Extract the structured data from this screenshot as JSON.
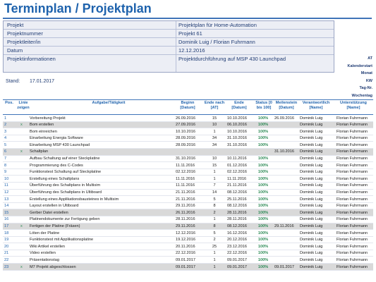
{
  "title": "Terminplan / Projektplan",
  "info": [
    {
      "label": "Projekt",
      "value": "Projektplan für Home-Automation"
    },
    {
      "label": "Projektnummer",
      "value": "Projekt 61"
    },
    {
      "label": "Projektleiter/in",
      "value": "Dominik Luig / Florian Fuhrmann"
    },
    {
      "label": "Datum",
      "value": "12.12.2016"
    },
    {
      "label": "Projektinformationen",
      "value": "Projektdurchführung auf MSP 430 Launchpad"
    }
  ],
  "right_labels": [
    "AT",
    "Kalenderstart",
    "Monat",
    "KW",
    "Tag-Nr.",
    "Wochentag"
  ],
  "stand": {
    "label": "Stand:",
    "value": "17.01.2017"
  },
  "headers": {
    "pos": "Pos.",
    "linie": "Linie zeigen",
    "task": "Aufgabe/Tätigkeit",
    "beginn": "Beginn [Datum]",
    "ende_nach": "Ende nach [AT]",
    "ende": "Ende [Datum]",
    "status": "Status [0 bis 100]",
    "meilenstein": "Meilenstein [Datum]",
    "verantwortlich": "Verantwortlich [Name]",
    "unterstuetzung": "Unterstützung [Name]"
  },
  "rows": [
    {
      "pos": "1",
      "linie": "",
      "task": "Vorbereitung Projekt",
      "beginn": "26.09.2016",
      "at": "15",
      "ende": "10.10.2016",
      "status": "100%",
      "meilenstein": "26.09.2016",
      "verantwortlich": "Dominik Luig",
      "unterstuetzung": "Florian Fuhrmann",
      "ms": false
    },
    {
      "pos": "2",
      "linie": "x",
      "task": "Bom erstellen",
      "beginn": "27.09.2016",
      "at": "10",
      "ende": "06.10.2016",
      "status": "100%",
      "meilenstein": "",
      "verantwortlich": "Dominik Luig",
      "unterstuetzung": "Florian Fuhrmann",
      "ms": true
    },
    {
      "pos": "3",
      "linie": "",
      "task": "Bom einreichen",
      "beginn": "10.10.2016",
      "at": "1",
      "ende": "10.10.2016",
      "status": "100%",
      "meilenstein": "",
      "verantwortlich": "Dominik Luig",
      "unterstuetzung": "Florian Fuhrmann",
      "ms": false
    },
    {
      "pos": "4",
      "linie": "",
      "task": "Einarbeitung Energia Software",
      "beginn": "28.09.2016",
      "at": "34",
      "ende": "31.10.2016",
      "status": "100%",
      "meilenstein": "",
      "verantwortlich": "Dominik Luig",
      "unterstuetzung": "Florian Fuhrmann",
      "ms": false
    },
    {
      "pos": "5",
      "linie": "",
      "task": "Einarbeitung MSP 430 Launchpad",
      "beginn": "28.09.2016",
      "at": "34",
      "ende": "31.10.2016",
      "status": "100%",
      "meilenstein": "",
      "verantwortlich": "Dominik Luig",
      "unterstuetzung": "Florian Fuhrmann",
      "ms": false
    },
    {
      "pos": "6",
      "linie": "x",
      "task": "Schaltplan",
      "beginn": "",
      "at": "",
      "ende": "",
      "status": "",
      "meilenstein": "31.10.2016",
      "verantwortlich": "Dominik Luig",
      "unterstuetzung": "Florian Fuhrmann",
      "ms": true
    },
    {
      "pos": "7",
      "linie": "",
      "task": "Aufbau Schaltung auf einer Steckplatine",
      "beginn": "31.10.2016",
      "at": "10",
      "ende": "10.11.2016",
      "status": "100%",
      "meilenstein": "",
      "verantwortlich": "Dominik Luig",
      "unterstuetzung": "Florian Fuhrmann",
      "ms": false
    },
    {
      "pos": "8",
      "linie": "",
      "task": "Programmierung des C-Codes",
      "beginn": "11.11.2016",
      "at": "15",
      "ende": "01.12.2016",
      "status": "100%",
      "meilenstein": "",
      "verantwortlich": "Dominik Luig",
      "unterstuetzung": "Florian Fuhrmann",
      "ms": false
    },
    {
      "pos": "9",
      "linie": "",
      "task": "Funktionstest Schaltung auf Steckplatine",
      "beginn": "02.12.2016",
      "at": "1",
      "ende": "02.12.2016",
      "status": "100%",
      "meilenstein": "",
      "verantwortlich": "Dominik Luig",
      "unterstuetzung": "Florian Fuhrmann",
      "ms": false
    },
    {
      "pos": "10",
      "linie": "",
      "task": "Erstellung eines Schaltplans",
      "beginn": "11.11.2016",
      "at": "1",
      "ende": "11.11.2016",
      "status": "100%",
      "meilenstein": "",
      "verantwortlich": "Dominik Luig",
      "unterstuetzung": "Florian Fuhrmann",
      "ms": false
    },
    {
      "pos": "11",
      "linie": "",
      "task": "Überführung des Schaltplans in Multisim",
      "beginn": "11.11.2016",
      "at": "7",
      "ende": "21.11.2016",
      "status": "100%",
      "meilenstein": "",
      "verantwortlich": "Dominik Luig",
      "unterstuetzung": "Florian Fuhrmann",
      "ms": false
    },
    {
      "pos": "12",
      "linie": "",
      "task": "Überführung des Schaltplans in Ultiboard",
      "beginn": "21.11.2016",
      "at": "14",
      "ende": "08.12.2016",
      "status": "100%",
      "meilenstein": "",
      "verantwortlich": "Dominik Luig",
      "unterstuetzung": "Florian Fuhrmann",
      "ms": false
    },
    {
      "pos": "13",
      "linie": "",
      "task": "Erstellung eines Applikationsbausteines in Multisim",
      "beginn": "21.11.2016",
      "at": "5",
      "ende": "25.11.2016",
      "status": "100%",
      "meilenstein": "",
      "verantwortlich": "Dominik Luig",
      "unterstuetzung": "Florian Fuhrmann",
      "ms": false
    },
    {
      "pos": "14",
      "linie": "",
      "task": "Layout erstellen in Ultiboard",
      "beginn": "29.11.2016",
      "at": "8",
      "ende": "08.12.2016",
      "status": "100%",
      "meilenstein": "",
      "verantwortlich": "Dominik Luig",
      "unterstuetzung": "Florian Fuhrmann",
      "ms": false
    },
    {
      "pos": "15",
      "linie": "",
      "task": "Gerber Datei erstellen",
      "beginn": "26.11.2016",
      "at": "2",
      "ende": "28.11.2016",
      "status": "100%",
      "meilenstein": "",
      "verantwortlich": "Dominik Luig",
      "unterstuetzung": "Florian Fuhrmann",
      "ms": true
    },
    {
      "pos": "16",
      "linie": "",
      "task": "Platinendokumente zur Fertigung geben",
      "beginn": "28.11.2016",
      "at": "1",
      "ende": "28.11.2016",
      "status": "100%",
      "meilenstein": "",
      "verantwortlich": "Dominik Luig",
      "unterstuetzung": "Florian Fuhrmann",
      "ms": false
    },
    {
      "pos": "17",
      "linie": "x",
      "task": "Fertigen der Platine (Fräsen)",
      "beginn": "29.11.2016",
      "at": "8",
      "ende": "08.12.2016",
      "status": "100%",
      "meilenstein": "29.11.2016",
      "verantwortlich": "Dominik Luig",
      "unterstuetzung": "Florian Fuhrmann",
      "ms": true
    },
    {
      "pos": "18",
      "linie": "",
      "task": "Löten der Platine",
      "beginn": "12.12.2016",
      "at": "5",
      "ende": "16.12.2016",
      "status": "100%",
      "meilenstein": "",
      "verantwortlich": "Dominik Luig",
      "unterstuetzung": "Florian Fuhrmann",
      "ms": false
    },
    {
      "pos": "19",
      "linie": "",
      "task": "Funktionstest mit Applikationsplatine",
      "beginn": "19.12.2016",
      "at": "2",
      "ende": "20.12.2016",
      "status": "100%",
      "meilenstein": "",
      "verantwortlich": "Dominik Luig",
      "unterstuetzung": "Florian Fuhrmann",
      "ms": false
    },
    {
      "pos": "20",
      "linie": "",
      "task": "Wiki Artikel erstellen",
      "beginn": "20.11.2016",
      "at": "25",
      "ende": "23.12.2016",
      "status": "100%",
      "meilenstein": "",
      "verantwortlich": "Dominik Luig",
      "unterstuetzung": "Florian Fuhrmann",
      "ms": false
    },
    {
      "pos": "21",
      "linie": "",
      "task": "Video erstellen",
      "beginn": "22.12.2016",
      "at": "1",
      "ende": "22.12.2016",
      "status": "100%",
      "meilenstein": "",
      "verantwortlich": "Dominik Luig",
      "unterstuetzung": "Florian Fuhrmann",
      "ms": false
    },
    {
      "pos": "22",
      "linie": "",
      "task": "Präsentationstag",
      "beginn": "09.01.2017",
      "at": "1",
      "ende": "09.01.2017",
      "status": "100%",
      "meilenstein": "",
      "verantwortlich": "Dominik Luig",
      "unterstuetzung": "Florian Fuhrmann",
      "ms": false
    },
    {
      "pos": "23",
      "linie": "x",
      "task": "M7 Projekt abgeschlossen",
      "beginn": "09.01.2017",
      "at": "1",
      "ende": "09.01.2017",
      "status": "100%",
      "meilenstein": "09.01.2017",
      "verantwortlich": "Dominik Luig",
      "unterstuetzung": "Florian Fuhrmann",
      "ms": true
    }
  ]
}
